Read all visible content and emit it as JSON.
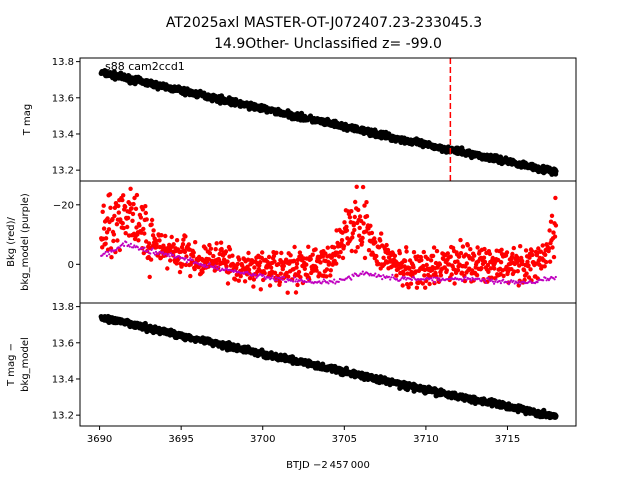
{
  "chart_data": {
    "type": "scatter",
    "title_line1": "AT2025axl  MASTER-OT-J072407.23-233045.3",
    "title_line2": "14.9Other- Unclassified z= -99.0",
    "annotation": "s88 cam2ccd1",
    "xlabel": "BTJD −2 457 000",
    "xlim": [
      3688.8,
      3719.2
    ],
    "xticks": [
      "3690",
      "3695",
      "3700",
      "3705",
      "3710",
      "3715"
    ],
    "xtick_values": [
      3690,
      3695,
      3700,
      3705,
      3710,
      3715
    ],
    "x_start": 3690.1,
    "x_end": 3718.0,
    "event_line_x": 3711.5,
    "colors": {
      "flux": "#000000",
      "background": "#ff0000",
      "bkg_model": "#bf00bf",
      "event_line": "#ff0000"
    },
    "panels": [
      {
        "ylabel": [
          "T mag"
        ],
        "ylim": [
          13.82,
          13.14
        ],
        "inverted": true,
        "yticks": [
          "13.2",
          "13.4",
          "13.6",
          "13.8"
        ],
        "ytick_values": [
          13.2,
          13.4,
          13.6,
          13.8
        ],
        "series": [
          {
            "points": [
              [
                3690.1,
                13.74
              ],
              [
                3695,
                13.64
              ],
              [
                3700,
                13.54
              ],
              [
                3705,
                13.44
              ],
              [
                3710,
                13.34
              ],
              [
                3715,
                13.25
              ],
              [
                3718.0,
                13.19
              ]
            ]
          }
        ]
      },
      {
        "ylabel": [
          "Bkg (red)/",
          "bkg_model (purple)"
        ],
        "ylim": [
          -28,
          13
        ],
        "inverted": false,
        "yticks": [
          "−20",
          "0"
        ],
        "ytick_values": [
          -20,
          0
        ],
        "series": [
          {
            "points": [
              [
                3690.1,
                -12
              ],
              [
                3690.8,
                -14
              ],
              [
                3691.3,
                -18
              ],
              [
                3691.9,
                -16
              ],
              [
                3692.4,
                -14
              ],
              [
                3693.0,
                -9
              ],
              [
                3693.5,
                -6
              ],
              [
                3694.5,
                -4
              ],
              [
                3696,
                -2
              ],
              [
                3698,
                0
              ],
              [
                3700,
                1
              ],
              [
                3702,
                1
              ],
              [
                3703.5,
                0
              ],
              [
                3704.5,
                -3
              ],
              [
                3705.3,
                -12
              ],
              [
                3705.8,
                -16
              ],
              [
                3706.3,
                -11
              ],
              [
                3707.0,
                -4
              ],
              [
                3708.5,
                0
              ],
              [
                3710,
                1
              ],
              [
                3712,
                0
              ],
              [
                3714,
                0
              ],
              [
                3716,
                0
              ],
              [
                3717.2,
                -1
              ],
              [
                3717.8,
                -10
              ],
              [
                3718.0,
                -16
              ]
            ]
          },
          {
            "points": [
              [
                3690.1,
                -3
              ],
              [
                3691.0,
                -5
              ],
              [
                3691.6,
                -7
              ],
              [
                3692.5,
                -5
              ],
              [
                3693.5,
                -4
              ],
              [
                3695,
                -2
              ],
              [
                3697,
                1
              ],
              [
                3699,
                3
              ],
              [
                3701,
                5
              ],
              [
                3703,
                6
              ],
              [
                3704.5,
                6
              ],
              [
                3705.5,
                4
              ],
              [
                3706.2,
                3
              ],
              [
                3707,
                4
              ],
              [
                3709,
                5
              ],
              [
                3711,
                5
              ],
              [
                3713,
                5
              ],
              [
                3715,
                6
              ],
              [
                3716.5,
                6
              ],
              [
                3717.5,
                5
              ],
              [
                3718.0,
                4
              ]
            ]
          }
        ]
      },
      {
        "ylabel": [
          "T mag −",
          "bkg_model"
        ],
        "ylim": [
          13.82,
          13.14
        ],
        "inverted": true,
        "yticks": [
          "13.2",
          "13.4",
          "13.6",
          "13.8"
        ],
        "ytick_values": [
          13.2,
          13.4,
          13.6,
          13.8
        ],
        "series": [
          {
            "points": [
              [
                3690.1,
                13.74
              ],
              [
                3695,
                13.64
              ],
              [
                3700,
                13.54
              ],
              [
                3705,
                13.44
              ],
              [
                3710,
                13.34
              ],
              [
                3715,
                13.25
              ],
              [
                3718.0,
                13.19
              ]
            ]
          }
        ]
      }
    ]
  }
}
